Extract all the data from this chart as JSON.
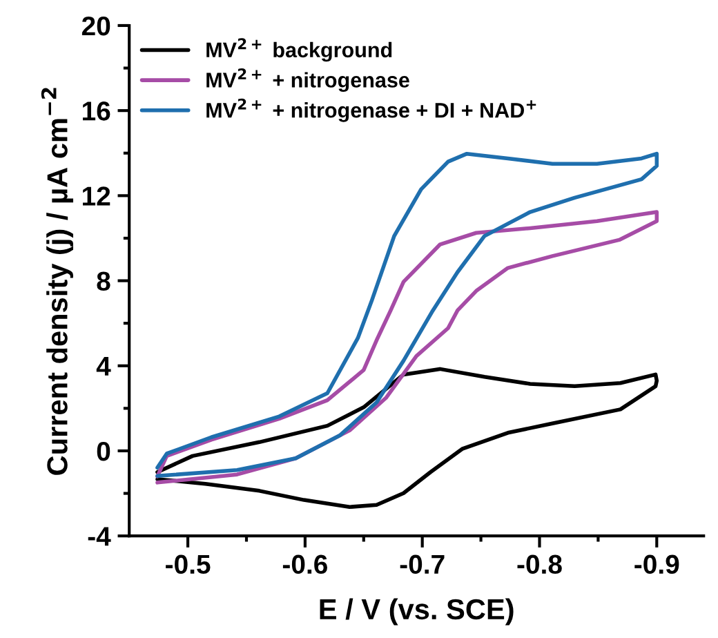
{
  "chart_data": {
    "type": "line",
    "xlabel": "E / V (vs. SCE)",
    "ylabel": "Current density (j) / µA cm$^{−2}$",
    "xlim": [
      -0.45,
      -0.94
    ],
    "ylim": [
      -4,
      20
    ],
    "xticks": [
      -0.5,
      {
        "value": -0.55,
        "label": null
      },
      -0.6,
      {
        "value": -0.65,
        "label": null
      },
      -0.7,
      {
        "value": -0.75,
        "label": null
      },
      -0.8,
      {
        "value": -0.85,
        "label": null
      },
      -0.9
    ],
    "yticks": [
      -4,
      {
        "value": -2,
        "label": null
      },
      0,
      {
        "value": 2,
        "label": null
      },
      4,
      {
        "value": 6,
        "label": null
      },
      8,
      {
        "value": 10,
        "label": null
      },
      12,
      {
        "value": 14,
        "label": null
      },
      16,
      {
        "value": 18,
        "label": null
      },
      20
    ],
    "grid": false,
    "legend": "top left",
    "marker": "none",
    "line_style": "solid",
    "series": [
      {
        "name": "MV$^{2+}$ background",
        "color": "#000000",
        "x": [
          -0.474,
          -0.504,
          -0.561,
          -0.619,
          -0.65,
          -0.684,
          -0.715,
          -0.753,
          -0.792,
          -0.83,
          -0.869,
          -0.899,
          -0.9,
          -0.899,
          -0.869,
          -0.811,
          -0.773,
          -0.734,
          -0.707,
          -0.684,
          -0.661,
          -0.638,
          -0.599,
          -0.561,
          -0.515,
          -0.474
        ],
        "values": [
          -1.0,
          -0.24,
          0.41,
          1.18,
          2.05,
          3.59,
          3.85,
          3.48,
          3.15,
          3.04,
          3.19,
          3.59,
          3.3,
          3.04,
          1.95,
          1.29,
          0.85,
          0.09,
          -1.0,
          -1.99,
          -2.54,
          -2.64,
          -2.31,
          -1.88,
          -1.55,
          -1.33
        ]
      },
      {
        "name": "MV$^{2+}$ + nitrogenase",
        "color": "#a64ca6",
        "x": [
          -0.474,
          -0.482,
          -0.52,
          -0.578,
          -0.619,
          -0.65,
          -0.661,
          -0.673,
          -0.684,
          -0.715,
          -0.746,
          -0.792,
          -0.849,
          -0.9,
          -0.9,
          -0.868,
          -0.811,
          -0.773,
          -0.746,
          -0.73,
          -0.722,
          -0.695,
          -0.669,
          -0.638,
          -0.592,
          -0.542,
          -0.474
        ],
        "values": [
          -1.2,
          -0.24,
          0.52,
          1.51,
          2.38,
          3.8,
          5.2,
          6.6,
          7.95,
          9.7,
          10.25,
          10.47,
          10.8,
          11.23,
          10.8,
          9.92,
          9.16,
          8.6,
          7.52,
          6.6,
          5.77,
          4.46,
          2.49,
          0.96,
          -0.35,
          -1.11,
          -1.49
        ]
      },
      {
        "name": "MV$^{2+}$ + nitrogenase + DI + NAD$^{+}$",
        "color": "#1f6fae",
        "x": [
          -0.474,
          -0.482,
          -0.52,
          -0.578,
          -0.619,
          -0.645,
          -0.657,
          -0.676,
          -0.699,
          -0.722,
          -0.738,
          -0.773,
          -0.811,
          -0.849,
          -0.887,
          -0.9,
          -0.9,
          -0.887,
          -0.83,
          -0.792,
          -0.753,
          -0.73,
          -0.709,
          -0.684,
          -0.661,
          -0.63,
          -0.592,
          -0.542,
          -0.474
        ],
        "values": [
          -0.79,
          -0.13,
          0.64,
          1.62,
          2.71,
          5.3,
          7.08,
          10.1,
          12.3,
          13.6,
          13.97,
          13.75,
          13.5,
          13.5,
          13.75,
          13.97,
          13.4,
          12.77,
          11.9,
          11.23,
          10.1,
          8.4,
          6.6,
          4.24,
          2.28,
          0.74,
          -0.35,
          -0.9,
          -1.18
        ]
      }
    ]
  }
}
